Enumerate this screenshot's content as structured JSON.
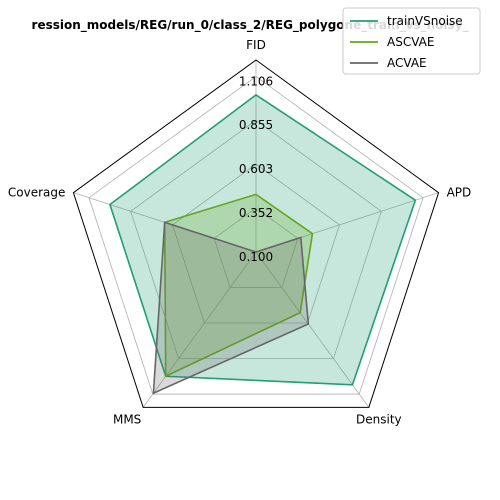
{
  "chart_data": {
    "type": "radar",
    "title": "ression_models/REG/run_0/class_2/REG_polygone_train_vs_noisy_",
    "axes": [
      "FID",
      "APD",
      "Density",
      "MMS",
      "Coverage"
    ],
    "rticks": [
      "0.100",
      "0.352",
      "0.603",
      "0.855",
      "1.106"
    ],
    "rlim": [
      0.1,
      1.2
    ],
    "grid": true,
    "legend_position": "top-right",
    "series": [
      {
        "name": "trainVSnoise",
        "color": "#1f9e77",
        "values": [
          1.0,
          1.06,
          1.04,
          0.98,
          0.98
        ]
      },
      {
        "name": "ASCVAE",
        "color": "#66a61e",
        "values": [
          0.43,
          0.44,
          0.53,
          0.98,
          0.65
        ]
      },
      {
        "name": "ACVAE",
        "color": "#666666",
        "values": [
          0.1,
          0.37,
          0.61,
          1.1,
          0.65
        ]
      }
    ]
  }
}
